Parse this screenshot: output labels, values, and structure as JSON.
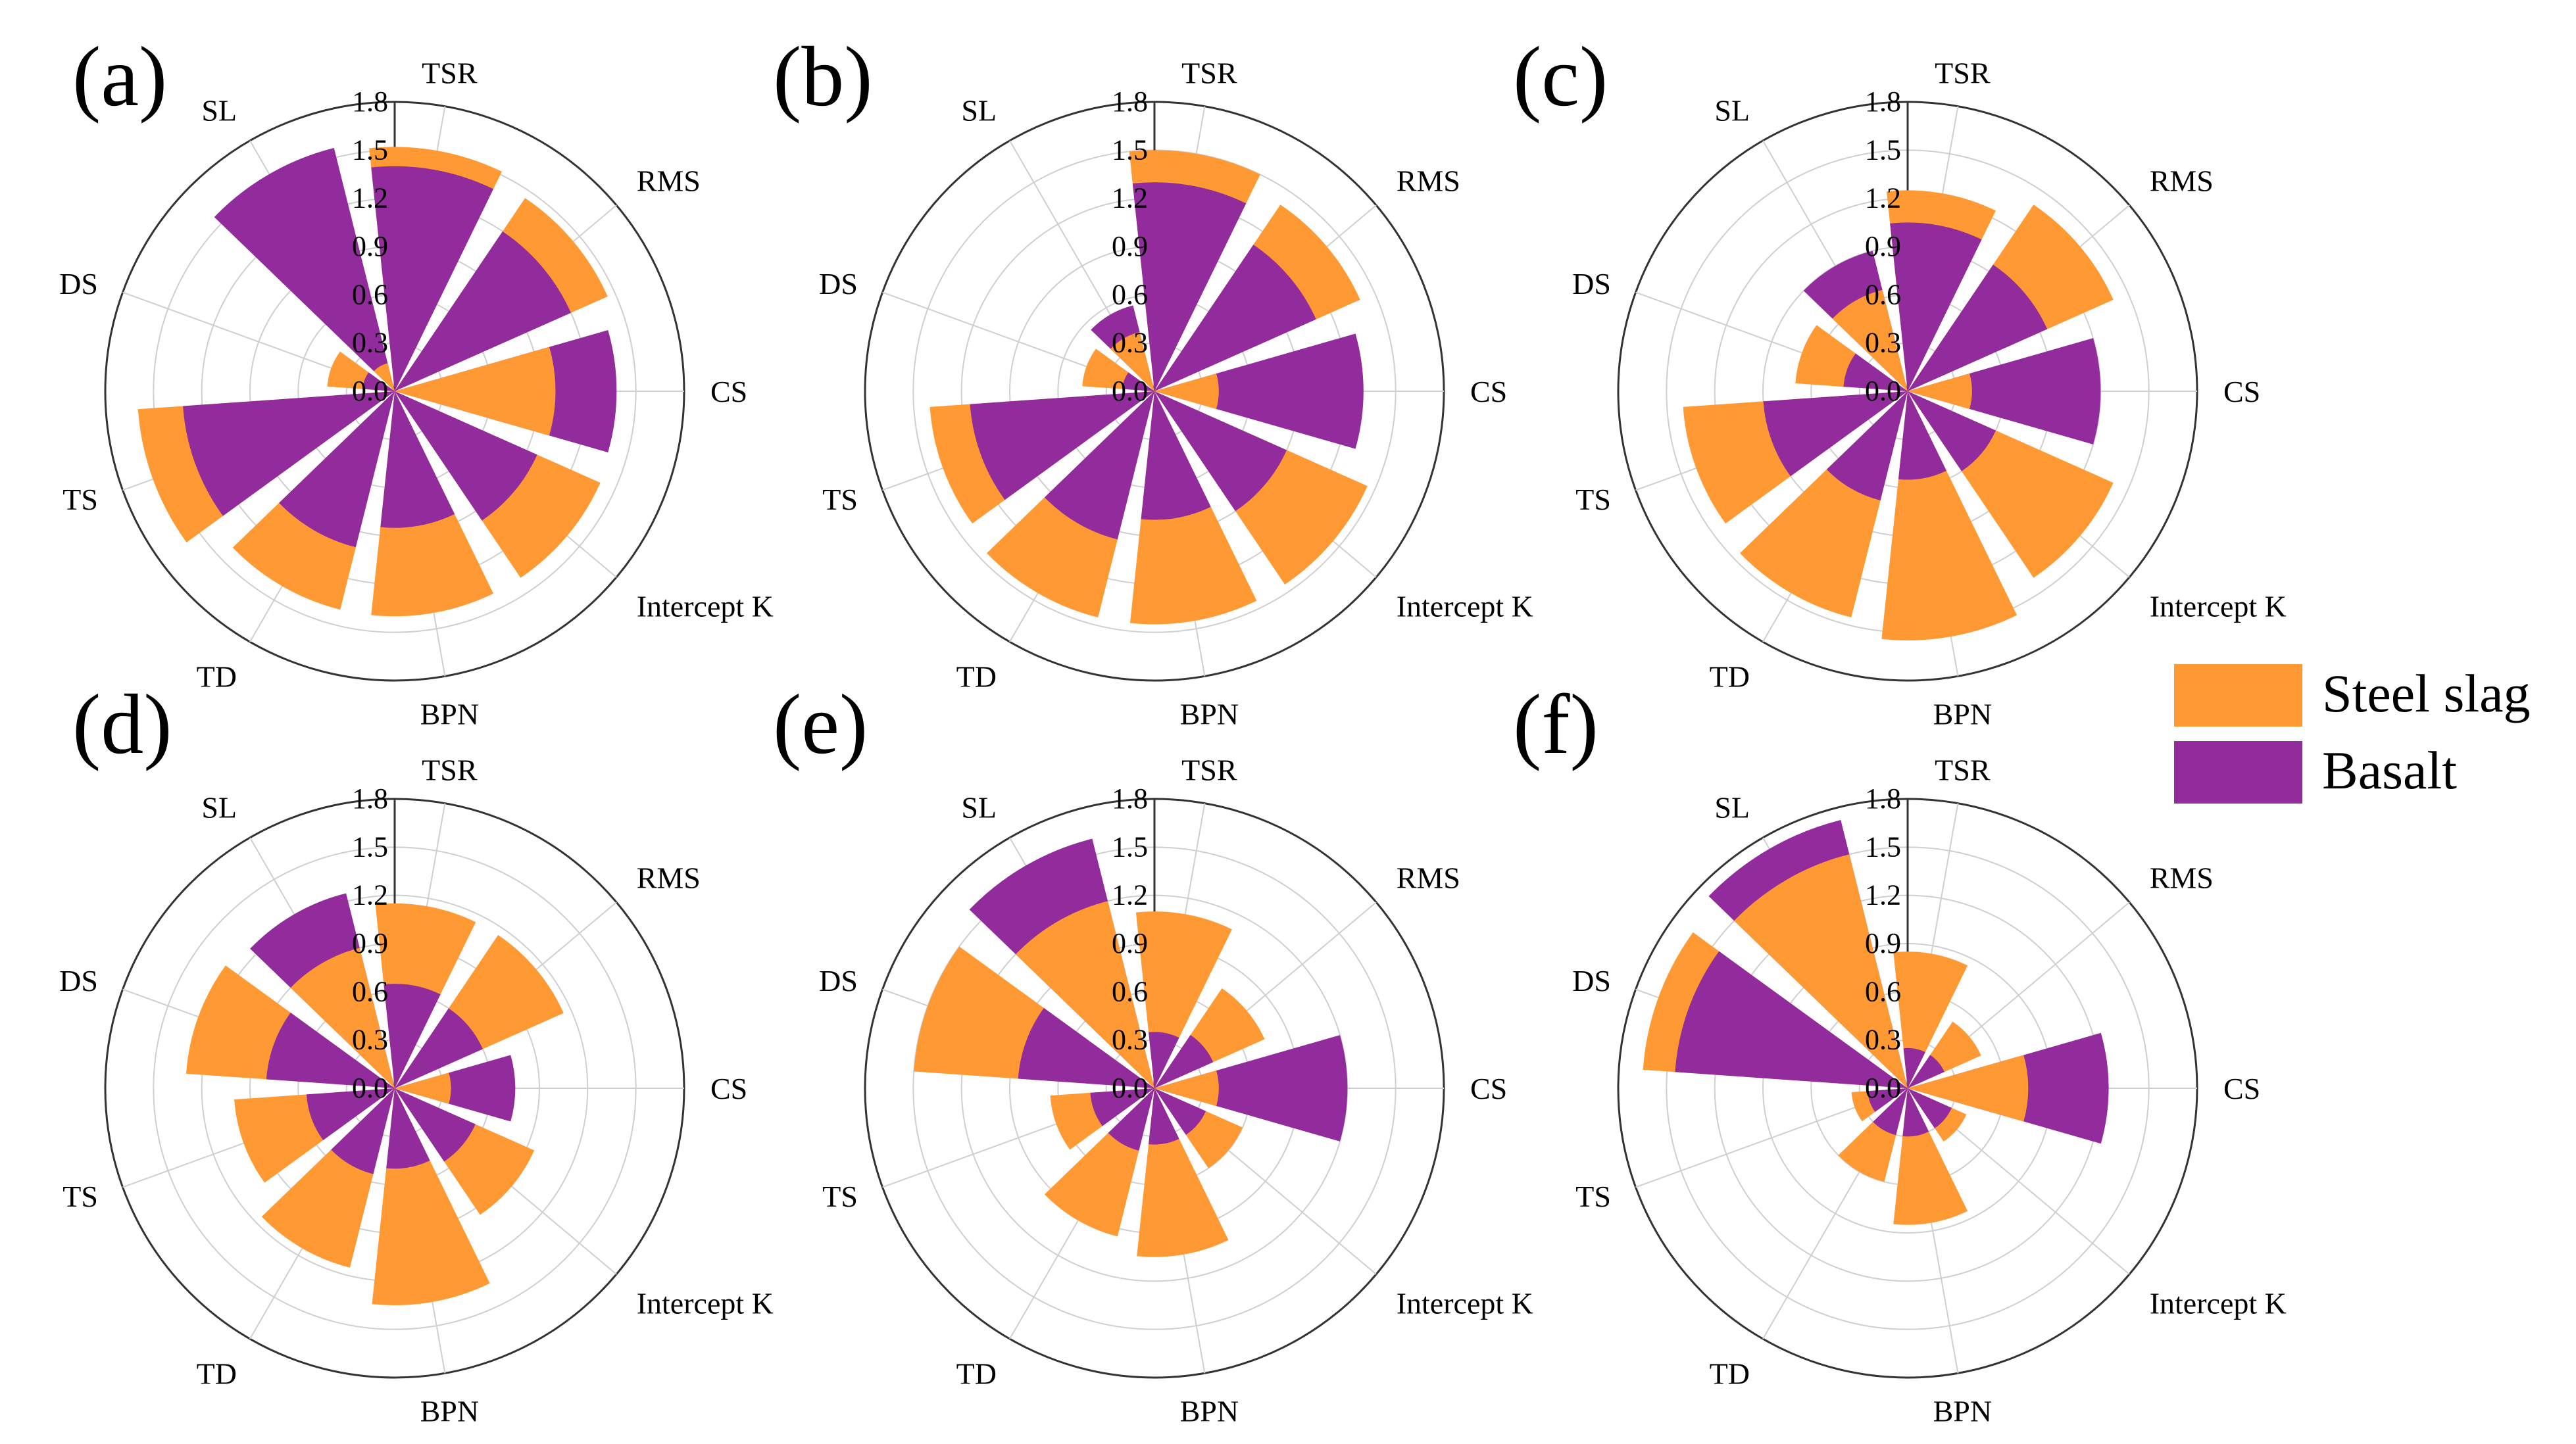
{
  "legend": {
    "items": [
      {
        "label": "Steel slag",
        "color": "#FF9933"
      },
      {
        "label": "Basalt",
        "color": "#922B9B"
      }
    ]
  },
  "chart_data": [
    {
      "type": "polar-bar",
      "panel_label": "(a)",
      "categories": [
        "TSR",
        "RMS",
        "CS",
        "Intercept K",
        "BPN",
        "TD",
        "TS",
        "DS",
        "SL"
      ],
      "radial_ticks": [
        "0.0",
        "0.3",
        "0.6",
        "0.9",
        "1.2",
        "1.5",
        "1.8"
      ],
      "rlim": [
        0,
        1.8
      ],
      "series": [
        {
          "name": "Steel slag",
          "values": [
            1.52,
            1.45,
            1.0,
            1.4,
            1.4,
            1.4,
            1.6,
            0.42,
            0.18
          ]
        },
        {
          "name": "Basalt",
          "values": [
            1.4,
            1.2,
            1.38,
            0.97,
            0.85,
            1.0,
            1.32,
            0.2,
            1.56
          ]
        }
      ]
    },
    {
      "type": "polar-bar",
      "panel_label": "(b)",
      "categories": [
        "TSR",
        "RMS",
        "CS",
        "Intercept K",
        "BPN",
        "TD",
        "TS",
        "DS",
        "SL"
      ],
      "radial_ticks": [
        "0.0",
        "0.3",
        "0.6",
        "0.9",
        "1.2",
        "1.5",
        "1.8"
      ],
      "rlim": [
        0,
        1.8
      ],
      "series": [
        {
          "name": "Steel slag",
          "values": [
            1.5,
            1.4,
            0.4,
            1.45,
            1.45,
            1.45,
            1.4,
            0.45,
            0.38
          ]
        },
        {
          "name": "Basalt",
          "values": [
            1.3,
            1.1,
            1.3,
            0.9,
            0.8,
            0.95,
            1.15,
            0.2,
            0.55
          ]
        }
      ]
    },
    {
      "type": "polar-bar",
      "panel_label": "(c)",
      "categories": [
        "TSR",
        "RMS",
        "CS",
        "Intercept K",
        "BPN",
        "TD",
        "TS",
        "DS",
        "SL"
      ],
      "radial_ticks": [
        "0.0",
        "0.3",
        "0.6",
        "0.9",
        "1.2",
        "1.5",
        "1.8"
      ],
      "rlim": [
        0,
        1.8
      ],
      "series": [
        {
          "name": "Steel slag",
          "values": [
            1.25,
            1.4,
            0.4,
            1.4,
            1.55,
            1.45,
            1.4,
            0.7,
            0.65
          ]
        },
        {
          "name": "Basalt",
          "values": [
            1.05,
            0.95,
            1.2,
            0.6,
            0.55,
            0.7,
            0.9,
            0.4,
            0.9
          ]
        }
      ]
    },
    {
      "type": "polar-bar",
      "panel_label": "(d)",
      "categories": [
        "TSR",
        "RMS",
        "CS",
        "Intercept K",
        "BPN",
        "TD",
        "TS",
        "DS",
        "SL"
      ],
      "radial_ticks": [
        "0.0",
        "0.3",
        "0.6",
        "0.9",
        "1.2",
        "1.5",
        "1.8"
      ],
      "rlim": [
        0,
        1.8
      ],
      "series": [
        {
          "name": "Steel slag",
          "values": [
            1.15,
            1.15,
            0.35,
            0.95,
            1.35,
            1.15,
            1.0,
            1.3,
            0.9
          ]
        },
        {
          "name": "Basalt",
          "values": [
            0.65,
            0.6,
            0.75,
            0.55,
            0.5,
            0.55,
            0.55,
            0.8,
            1.25
          ]
        }
      ]
    },
    {
      "type": "polar-bar",
      "panel_label": "(e)",
      "categories": [
        "TSR",
        "RMS",
        "CS",
        "Intercept K",
        "BPN",
        "TD",
        "TS",
        "DS",
        "SL"
      ],
      "radial_ticks": [
        "0.0",
        "0.3",
        "0.6",
        "0.9",
        "1.2",
        "1.5",
        "1.8"
      ],
      "rlim": [
        0,
        1.8
      ],
      "series": [
        {
          "name": "Steel slag",
          "values": [
            1.1,
            0.75,
            0.4,
            0.6,
            1.05,
            0.95,
            0.65,
            1.5,
            1.2
          ]
        },
        {
          "name": "Basalt",
          "values": [
            0.35,
            0.4,
            1.2,
            0.35,
            0.35,
            0.4,
            0.4,
            0.85,
            1.6
          ]
        }
      ]
    },
    {
      "type": "polar-bar",
      "panel_label": "(f)",
      "categories": [
        "TSR",
        "RMS",
        "CS",
        "Intercept K",
        "BPN",
        "TD",
        "TS",
        "DS",
        "SL"
      ],
      "radial_ticks": [
        "0.0",
        "0.3",
        "0.6",
        "0.9",
        "1.2",
        "1.5",
        "1.8"
      ],
      "rlim": [
        0,
        1.8
      ],
      "series": [
        {
          "name": "Steel slag",
          "values": [
            0.85,
            0.5,
            0.75,
            0.4,
            0.85,
            0.6,
            0.35,
            1.65,
            1.5
          ]
        },
        {
          "name": "Basalt",
          "values": [
            0.25,
            0.25,
            1.25,
            0.3,
            0.3,
            0.3,
            0.25,
            1.45,
            1.72
          ]
        }
      ]
    }
  ]
}
